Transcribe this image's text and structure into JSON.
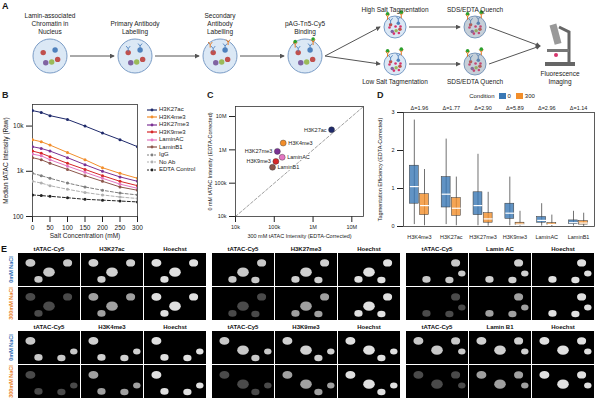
{
  "diagram": {
    "panel": "A",
    "steps": [
      "Lamin-associated Chromatin in Nucleus",
      "Primary Antibody Labelling",
      "Secondary Antibody Labelling",
      "pAG-Tn5-Cy5 Binding"
    ],
    "branches": [
      {
        "tagmentation": "High Salt Tagmentation",
        "quench": "SDS/EDTA Quench"
      },
      {
        "tagmentation": "Low Salt Tagmentation",
        "quench": "SDS/EDTA Quench"
      }
    ],
    "imaging": "Fluorescence Imaging"
  },
  "chart_data": [
    {
      "panel": "B",
      "type": "line",
      "x_label": "Salt Concentration (mM)",
      "y_label": "Median tATAC Intensity (Raw)",
      "x": [
        0,
        25,
        50,
        100,
        150,
        200,
        250,
        300
      ],
      "xlim": [
        0,
        300
      ],
      "xticks": [
        0,
        50,
        100,
        150,
        200,
        250,
        300
      ],
      "ylim": [
        100,
        30000
      ],
      "yticks": [
        100,
        {
          "value": 1000,
          "label": "1k"
        },
        {
          "value": 10000,
          "label": "10k"
        }
      ],
      "log": "y",
      "legend": "right",
      "marker": "circle",
      "series": [
        {
          "name": "H3K27ac",
          "color": "#1f2a6b",
          "values": [
            22000,
            20000,
            17000,
            14000,
            10000,
            7000,
            5000,
            3500
          ]
        },
        {
          "name": "H3K4me3",
          "color": "#f28e2b",
          "values": [
            5000,
            4500,
            3800,
            2600,
            1800,
            1200,
            900,
            700
          ]
        },
        {
          "name": "H3K27me3",
          "color": "#7b3294",
          "values": [
            3500,
            3200,
            2800,
            2000,
            1400,
            1000,
            750,
            600
          ]
        },
        {
          "name": "H3K9me3",
          "color": "#d62728",
          "values": [
            2800,
            2500,
            2100,
            1500,
            1100,
            800,
            600,
            480
          ]
        },
        {
          "name": "LaminAC",
          "color": "#e377c2",
          "values": [
            2400,
            2200,
            1800,
            1300,
            950,
            700,
            520,
            420
          ]
        },
        {
          "name": "LaminB1",
          "color": "#8c564b",
          "values": [
            2000,
            1800,
            1500,
            1100,
            800,
            600,
            450,
            380
          ]
        },
        {
          "name": "IgG",
          "color": "#7f7f7f",
          "line_style": "dashed",
          "values": [
            900,
            800,
            700,
            550,
            450,
            380,
            330,
            300
          ]
        },
        {
          "name": "No Ab",
          "color": "#b0b0b0",
          "line_style": "dashed",
          "values": [
            600,
            550,
            480,
            400,
            340,
            300,
            270,
            250
          ]
        },
        {
          "name": "EDTA Control",
          "color": "#222222",
          "line_style": "dashed",
          "values": [
            300,
            290,
            280,
            260,
            240,
            230,
            220,
            210
          ]
        }
      ]
    },
    {
      "panel": "C",
      "type": "scatter",
      "x_label": "300 mM tATAC Intensity (EDTA-Corrected)",
      "y_label": "0 mM tATAC Intensity (EDTA-Corrected)",
      "log": true,
      "line_style": "dashed",
      "xlim": [
        10000,
        20000000
      ],
      "ylim": [
        10000,
        20000000
      ],
      "xticks": [
        {
          "value": 10000,
          "label": "10k"
        },
        {
          "value": 100000,
          "label": "100k"
        },
        {
          "value": 1000000,
          "label": "1M"
        },
        {
          "value": 10000000,
          "label": "10M"
        }
      ],
      "yticks": [
        {
          "value": 10000,
          "label": "10k"
        },
        {
          "value": 100000,
          "label": "100k"
        },
        {
          "value": 1000000,
          "label": "1M"
        },
        {
          "value": 10000000,
          "label": "10M"
        }
      ],
      "categories": [
        "H3K27ac",
        "H3K4me3",
        "H3K27me3",
        "LaminAC",
        "H3K9me3",
        "LaminB1"
      ],
      "x": [
        3000000,
        170000,
        120000,
        160000,
        110000,
        90000
      ],
      "values": [
        4000000,
        1600000,
        900000,
        600000,
        450000,
        300000
      ],
      "colors": [
        "#1f2a6b",
        "#f28e2b",
        "#7b3294",
        "#e377c2",
        "#d62728",
        "#8c564b"
      ]
    },
    {
      "panel": "D",
      "type": "box",
      "y_label": "Tagmentation Efficiency (EDTA-Corrected)",
      "categories": [
        "H3K4me3",
        "H3K27ac",
        "H3K27me3",
        "H3K9me3",
        "LaminAC",
        "LaminB1"
      ],
      "annotations": [
        "Δ=1.96",
        "Δ=1.77",
        "Δ=2.90",
        "Δ=5.89",
        "Δ=2.96",
        "Δ=1.14"
      ],
      "ylim": [
        0,
        3
      ],
      "yticks": [
        0,
        1,
        2,
        3
      ],
      "legend": "top",
      "legend_title": "Condition",
      "series": [
        {
          "name": "0",
          "color": "#3a78b5",
          "min": [
            0.05,
            0.05,
            0.02,
            0.02,
            0.01,
            0.01
          ],
          "q1": [
            0.6,
            0.5,
            0.3,
            0.2,
            0.1,
            0.06
          ],
          "median": [
            1.05,
            0.85,
            0.55,
            0.35,
            0.16,
            0.1
          ],
          "q3": [
            1.6,
            1.3,
            0.9,
            0.6,
            0.25,
            0.16
          ],
          "max": [
            2.8,
            2.3,
            1.9,
            1.3,
            0.6,
            0.4
          ]
        },
        {
          "name": "300",
          "color": "#f28e2b",
          "min": [
            0.02,
            0.02,
            0.01,
            0.01,
            0,
            0
          ],
          "q1": [
            0.3,
            0.28,
            0.1,
            0.04,
            0.04,
            0.05
          ],
          "median": [
            0.55,
            0.48,
            0.2,
            0.06,
            0.055,
            0.09
          ],
          "q3": [
            0.85,
            0.75,
            0.35,
            0.1,
            0.09,
            0.14
          ],
          "max": [
            1.5,
            1.3,
            0.9,
            0.4,
            0.3,
            0.35
          ]
        }
      ]
    }
  ],
  "images": {
    "panel": "E",
    "rows": [
      {
        "label": "0mM NaCl",
        "color": "#2f6db5"
      },
      {
        "label": "300mM NaCl",
        "color": "#e8822a"
      }
    ],
    "groups": [
      [
        "tATAC-Cy5",
        "H3K27ac",
        "Hoechst"
      ],
      [
        "tATAC-Cy5",
        "H3K27me3",
        "Hoechst"
      ],
      [
        "tATAC-Cy5",
        "Lamin AC",
        "Hoechst"
      ],
      [
        "tATAC-Cy5",
        "H3K4me3",
        "Hoechst"
      ],
      [
        "tATAC-Cy5",
        "H3K9me3",
        "Hoechst"
      ],
      [
        "tATAC-Cy5",
        "Lamin B1",
        "Hoechst"
      ]
    ]
  }
}
